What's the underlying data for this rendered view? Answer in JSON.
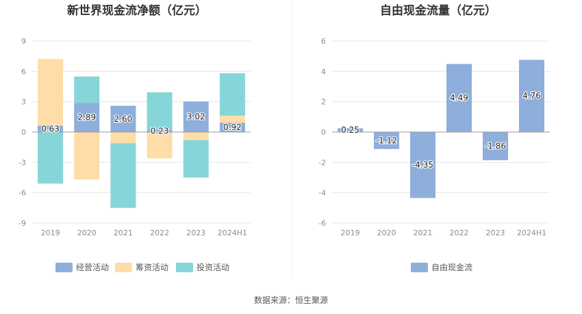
{
  "colors": {
    "operating": "#8EAEDC",
    "financing": "#FEDDA8",
    "investing": "#86D5D9",
    "free_cash_flow": "#8EAEDC",
    "grid": "#e6e6e6",
    "axis": "#cccccc",
    "divider": "#eeeeee"
  },
  "source": "数据来源：恒生聚源",
  "chart_data": [
    {
      "type": "bar",
      "stacked": true,
      "title": "新世界现金流净额（亿元）",
      "categories": [
        "2019",
        "2020",
        "2021",
        "2022",
        "2023",
        "2024H1"
      ],
      "ylim": [
        -9,
        9
      ],
      "yticks": [
        9,
        6,
        3,
        0,
        -3,
        -6,
        -9
      ],
      "grid": true,
      "legend_position": "bottom",
      "series": [
        {
          "name": "经营活动",
          "color_key": "operating",
          "values": [
            0.63,
            2.89,
            2.6,
            0.23,
            3.02,
            0.92
          ],
          "labeled": true
        },
        {
          "name": "筹资活动",
          "color_key": "financing",
          "values": [
            6.6,
            -4.7,
            -1.1,
            -2.6,
            -0.8,
            0.7
          ],
          "labeled": false
        },
        {
          "name": "投资活动",
          "color_key": "investing",
          "values": [
            -5.1,
            2.6,
            -6.4,
            3.7,
            -3.7,
            4.2
          ],
          "labeled": false
        }
      ]
    },
    {
      "type": "bar",
      "stacked": false,
      "title": "自由现金流量（亿元）",
      "categories": [
        "2019",
        "2020",
        "2021",
        "2022",
        "2023",
        "2024H1"
      ],
      "ylim": [
        -6,
        6
      ],
      "yticks": [
        6,
        4,
        2,
        0,
        -2,
        -4,
        -6
      ],
      "grid": true,
      "legend_position": "bottom",
      "series": [
        {
          "name": "自由现金流",
          "color_key": "free_cash_flow",
          "values": [
            0.25,
            -1.12,
            -4.35,
            4.49,
            -1.86,
            4.76
          ],
          "labeled": true
        }
      ]
    }
  ]
}
